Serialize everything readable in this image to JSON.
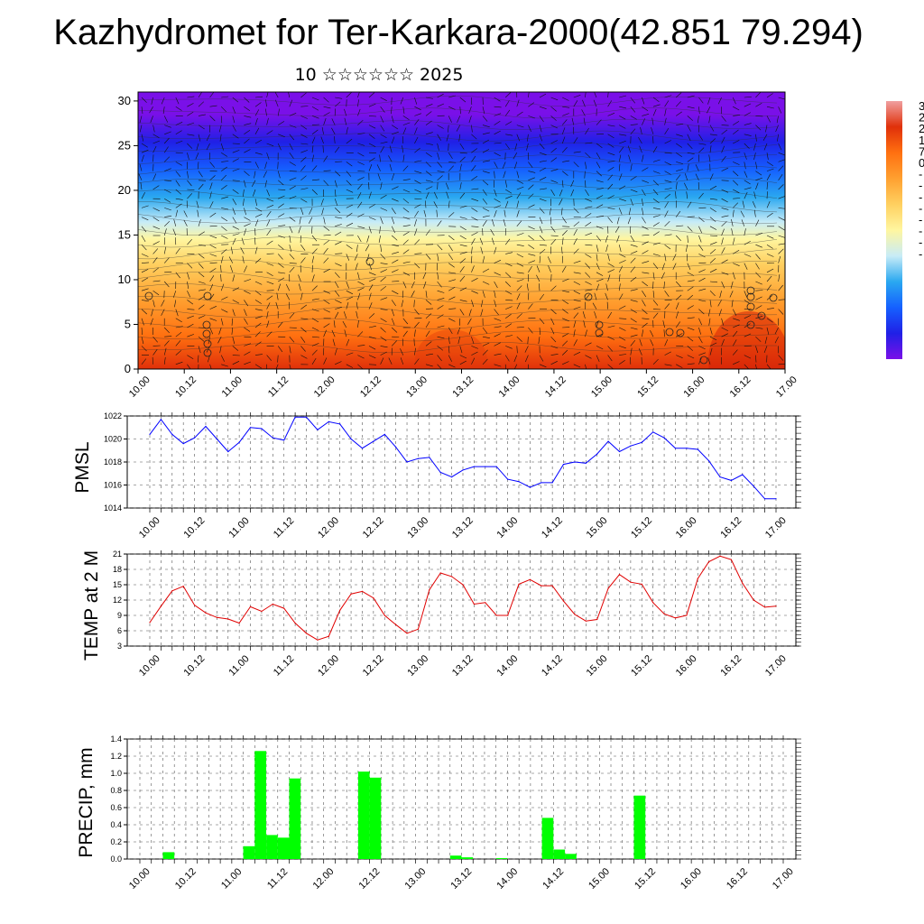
{
  "title": "Kazhydromet for Ter-Karkara-2000(42.851 79.294)",
  "subtitle": "10 ☆☆☆☆☆☆ 2025",
  "time_ticks": [
    "10.00",
    "10.12",
    "11.00",
    "11.12",
    "12.00",
    "12.12",
    "13.00",
    "13.12",
    "14.00",
    "14.12",
    "15.00",
    "15.12",
    "16.00",
    "16.12",
    "17.00"
  ],
  "chart_data": [
    {
      "type": "heatmap",
      "name": "cross-section",
      "ylim": [
        0,
        31
      ],
      "yticks": [
        "0",
        "5",
        "10",
        "15",
        "20",
        "25",
        "30"
      ],
      "colorbar_labels": [
        "3",
        "2",
        "2",
        "1",
        "7",
        "0",
        "-",
        "-",
        "-",
        "-",
        "-",
        "-",
        "-",
        "-"
      ],
      "colors": [
        "#7a10e8",
        "#2020e6",
        "#1560ff",
        "#2aa8f0",
        "#c8ecf7",
        "#fff6a0",
        "#ffd060",
        "#ffa030",
        "#ff7010",
        "#e0300a"
      ],
      "row_values": [
        4,
        3.5,
        3,
        2.5,
        2,
        1.6,
        1.2,
        0.8,
        0.4,
        0,
        -1,
        -2,
        -3.5,
        -5,
        -6.5,
        -8,
        -9.5,
        -10.5,
        -11.5,
        -12,
        -12.2
      ]
    },
    {
      "type": "line",
      "name": "pmsl",
      "ylabel": "PMSL",
      "ylim": [
        1014,
        1022
      ],
      "yticks": [
        "1014",
        "1016",
        "1018",
        "1020",
        "1022"
      ],
      "color": "#0000ff",
      "x_step_hours": 3,
      "values": [
        1020.4,
        1021.7,
        1020.4,
        1019.6,
        1020.1,
        1021.1,
        1020.0,
        1018.9,
        1019.7,
        1021.0,
        1020.9,
        1020.1,
        1019.9,
        1021.9,
        1021.9,
        1020.8,
        1021.5,
        1021.3,
        1020.0,
        1019.2,
        1019.8,
        1020.4,
        1019.3,
        1018.0,
        1018.3,
        1018.4,
        1017.1,
        1016.7,
        1017.3,
        1017.6,
        1017.6,
        1017.6,
        1016.5,
        1016.3,
        1015.8,
        1016.2,
        1016.2,
        1017.8,
        1018.0,
        1017.9,
        1018.7,
        1019.8,
        1018.9,
        1019.4,
        1019.7,
        1020.6,
        1020.1,
        1019.2,
        1019.2,
        1019.1,
        1018.1,
        1016.7,
        1016.4,
        1016.9,
        1015.9,
        1014.8,
        1014.8
      ]
    },
    {
      "type": "line",
      "name": "temp",
      "ylabel": "TEMP at 2 M",
      "ylim": [
        3,
        21
      ],
      "yticks": [
        "3",
        "6",
        "9",
        "12",
        "15",
        "18",
        "21"
      ],
      "color": "#e00000",
      "x_step_hours": 3,
      "values": [
        7.6,
        10.8,
        13.8,
        14.7,
        11.0,
        9.5,
        8.6,
        8.3,
        7.5,
        10.7,
        9.8,
        11.2,
        10.4,
        7.5,
        5.5,
        4.2,
        4.9,
        10.0,
        13.2,
        13.7,
        12.4,
        9.0,
        7.2,
        5.5,
        6.3,
        14.0,
        17.3,
        16.6,
        15.0,
        11.2,
        11.5,
        9.0,
        9.0,
        15.1,
        16.0,
        14.8,
        14.8,
        11.8,
        9.2,
        7.9,
        8.2,
        14.3,
        17.0,
        15.5,
        15.1,
        11.5,
        9.3,
        8.5,
        9.0,
        16.2,
        19.5,
        20.6,
        19.9,
        15.3,
        12.0,
        10.6,
        10.8
      ]
    },
    {
      "type": "bar",
      "name": "precip",
      "ylabel": "PRECIP, mm",
      "ylim": [
        0,
        1.4
      ],
      "yticks": [
        "0.0",
        "0.2",
        "0.4",
        "0.6",
        "0.8",
        "1.0",
        "1.2",
        "1.4"
      ],
      "color": "#00ff00",
      "bar_hours": 3,
      "bars": [
        {
          "start_hour": 6,
          "value": 0.08
        },
        {
          "start_hour": 27,
          "value": 0.15
        },
        {
          "start_hour": 30,
          "value": 1.26
        },
        {
          "start_hour": 33,
          "value": 0.28
        },
        {
          "start_hour": 36,
          "value": 0.25
        },
        {
          "start_hour": 39,
          "value": 0.94
        },
        {
          "start_hour": 57,
          "value": 1.02
        },
        {
          "start_hour": 60,
          "value": 0.95
        },
        {
          "start_hour": 81,
          "value": 0.04
        },
        {
          "start_hour": 84,
          "value": 0.02
        },
        {
          "start_hour": 93,
          "value": 0.01
        },
        {
          "start_hour": 105,
          "value": 0.48
        },
        {
          "start_hour": 108,
          "value": 0.11
        },
        {
          "start_hour": 111,
          "value": 0.06
        },
        {
          "start_hour": 129,
          "value": 0.74
        }
      ]
    }
  ]
}
